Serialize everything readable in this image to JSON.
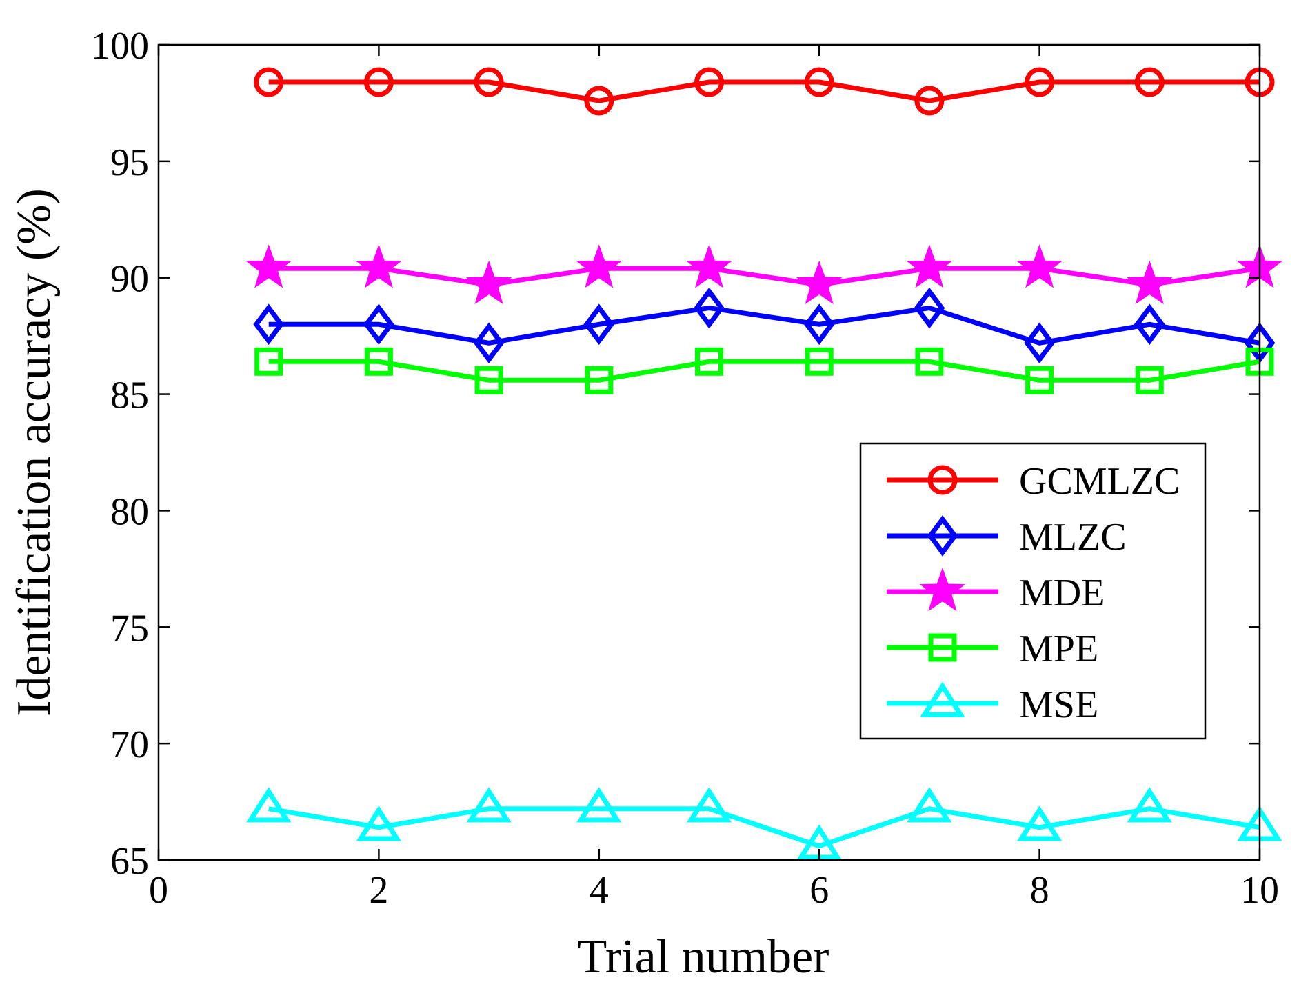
{
  "chart_data": {
    "type": "line",
    "title": "",
    "xlabel": "Trial number",
    "ylabel": "Identification accuracy (%)",
    "xlim": [
      0,
      10
    ],
    "ylim": [
      65,
      100
    ],
    "xticks": [
      0,
      2,
      4,
      6,
      8,
      10
    ],
    "yticks": [
      65,
      70,
      75,
      80,
      85,
      90,
      95,
      100
    ],
    "grid": false,
    "legend_position": "center-right",
    "x": [
      1,
      2,
      3,
      4,
      5,
      6,
      7,
      8,
      9,
      10
    ],
    "series": [
      {
        "name": "GCMLZC",
        "marker": "circle",
        "color": "#ff0000",
        "values": [
          98.4,
          98.4,
          98.4,
          97.6,
          98.4,
          98.4,
          97.6,
          98.4,
          98.4,
          98.4
        ]
      },
      {
        "name": "MLZC",
        "marker": "diamond",
        "color": "#0000ff",
        "values": [
          88.0,
          88.0,
          87.2,
          88.0,
          88.7,
          88.0,
          88.7,
          87.2,
          88.0,
          87.2
        ]
      },
      {
        "name": "MDE",
        "marker": "star",
        "color": "#ff00ff",
        "values": [
          90.4,
          90.4,
          89.7,
          90.4,
          90.4,
          89.7,
          90.4,
          90.4,
          89.7,
          90.4
        ]
      },
      {
        "name": "MPE",
        "marker": "square",
        "color": "#00ff00",
        "values": [
          86.4,
          86.4,
          85.6,
          85.6,
          86.4,
          86.4,
          86.4,
          85.6,
          85.6,
          86.4
        ]
      },
      {
        "name": "MSE",
        "marker": "triangle",
        "color": "#00ffff",
        "values": [
          67.2,
          66.4,
          67.2,
          67.2,
          67.2,
          65.6,
          67.2,
          66.4,
          67.2,
          66.4
        ]
      }
    ]
  }
}
